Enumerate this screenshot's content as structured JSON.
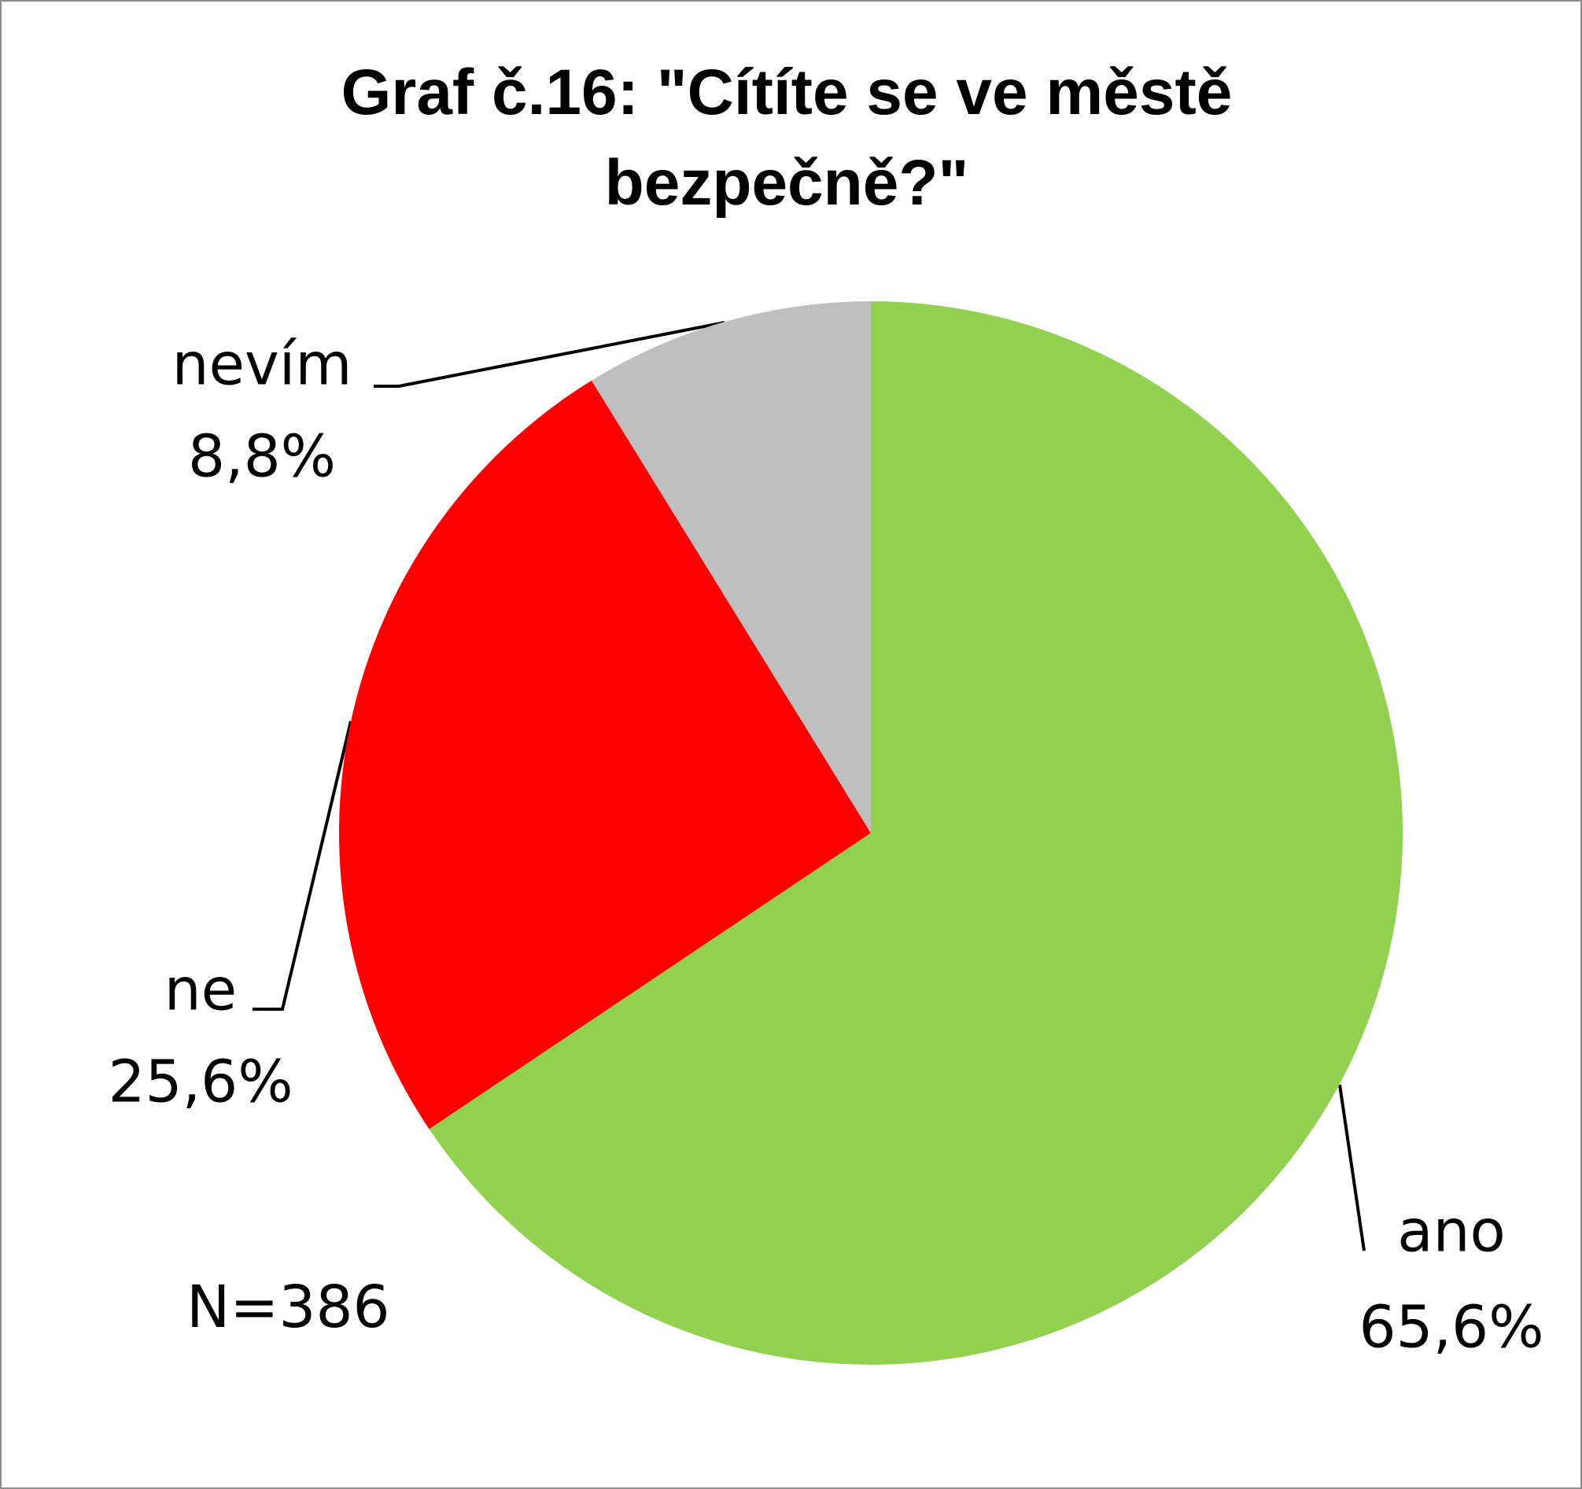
{
  "chart_data": {
    "type": "pie",
    "title": "Graf č.16: \"Cítíte se ve městě bezpečně?\"",
    "categories": [
      "ano",
      "ne",
      "nevím"
    ],
    "values": [
      65.6,
      25.6,
      8.8
    ],
    "value_labels": [
      "65,6%",
      "25,6%",
      "8,8%"
    ],
    "colors": [
      "#92d050",
      "#ff0000",
      "#bfbfbf"
    ],
    "annotation": "N=386"
  }
}
